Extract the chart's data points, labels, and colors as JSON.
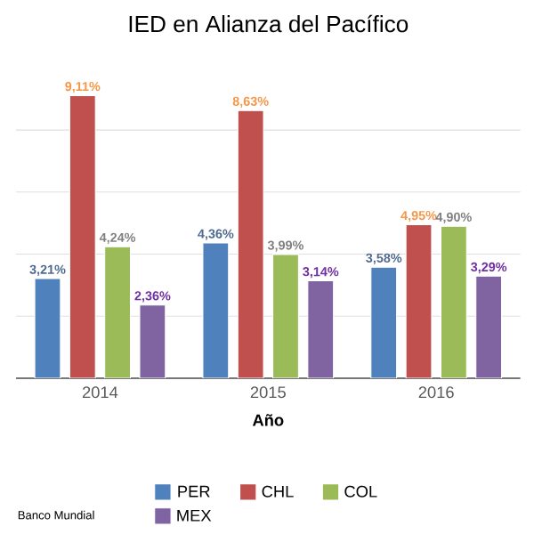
{
  "chart_data": {
    "type": "bar",
    "title": "IED en Alianza del Pacífico",
    "xlabel": "Año",
    "categories": [
      "2014",
      "2015",
      "2016"
    ],
    "series": [
      {
        "name": "PER",
        "color": "#4f81bd",
        "values": [
          3.21,
          4.36,
          3.58
        ],
        "value_labels": [
          "3,21%",
          "4,36%",
          "3,58%"
        ]
      },
      {
        "name": "CHL",
        "color": "#c0504d",
        "values": [
          9.11,
          8.63,
          4.95
        ],
        "value_labels": [
          "9,11%",
          "8,63%",
          "4,95%"
        ]
      },
      {
        "name": "COL",
        "color": "#9bbb59",
        "values": [
          4.24,
          3.99,
          4.9
        ],
        "value_labels": [
          "4,24%",
          "3,99%",
          "4,90%"
        ]
      },
      {
        "name": "MEX",
        "color": "#8064a2",
        "values": [
          2.36,
          3.14,
          3.29
        ],
        "value_labels": [
          "2,36%",
          "3,14%",
          "3,29%"
        ]
      }
    ],
    "grid": "y",
    "tick_labels": "x",
    "legend": "bottom",
    "annotations": [
      "Banco Mundial"
    ]
  }
}
